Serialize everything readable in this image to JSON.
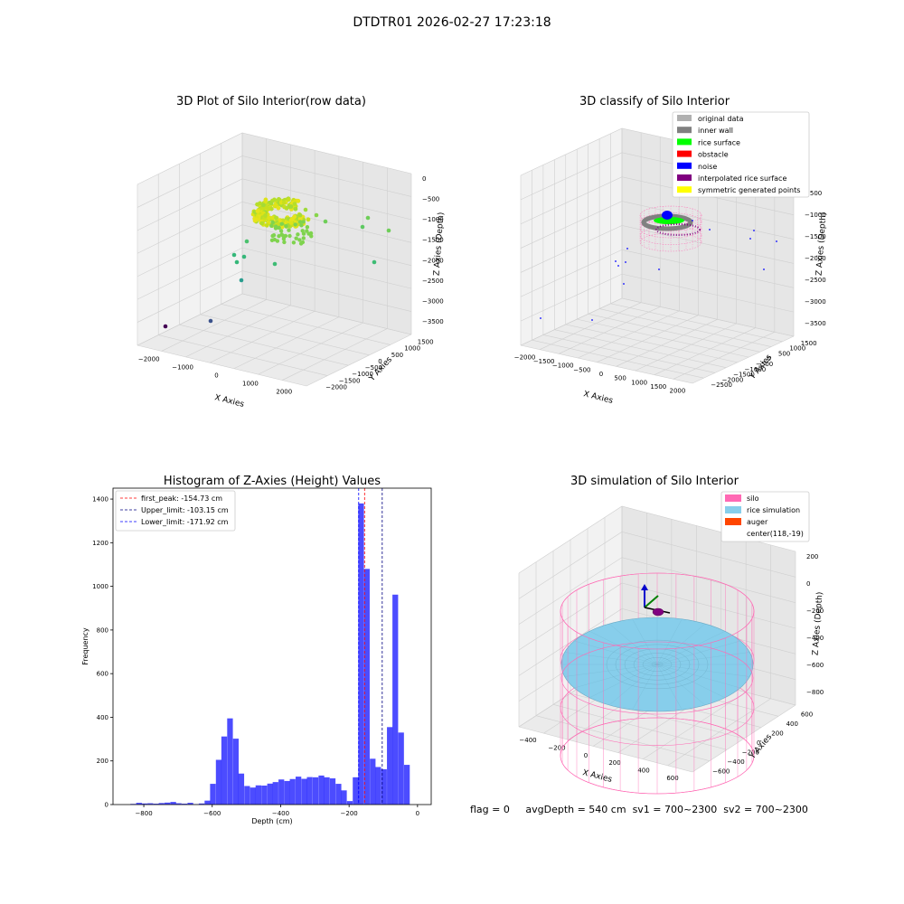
{
  "figure": {
    "suptitle": "DTDTR01 2026-02-27 17:23:18",
    "status": {
      "flag": "flag = 0",
      "avg_depth": "avgDepth = 540 cm",
      "sv1": "sv1 = 700~2300",
      "sv2": "sv2 = 700~2300"
    }
  },
  "chart_data": [
    {
      "type": "scatter",
      "subtype": "3d-scatter",
      "title": "3D Plot of Silo Interior(row data)",
      "xlabel": "X Axies",
      "ylabel": "Y Axies",
      "zlabel": "Z Axies (Depth)",
      "x_ticks": [
        "−2000",
        "−1000",
        "0",
        "1000",
        "2000"
      ],
      "y_ticks": [
        "1500",
        "1000",
        "500",
        "0",
        "−500",
        "−1000",
        "−1500",
        "−2000"
      ],
      "z_ticks": [
        "0",
        "−500",
        "−1000",
        "−1500",
        "−2000",
        "−2500",
        "−3000",
        "−3500"
      ],
      "xlim": [
        -2300,
        2300
      ],
      "ylim": [
        -2200,
        1700
      ],
      "zlim": [
        -3600,
        100
      ],
      "grid": true,
      "colormap": "viridis by depth",
      "cluster": {
        "x_range": [
          -200,
          200
        ],
        "y_range": [
          -150,
          250
        ],
        "z_range": [
          -250,
          -50
        ],
        "count": 2600
      },
      "outliers": [
        [
          -2050,
          -1900,
          -3300
        ],
        [
          -1550,
          -1500,
          -3050
        ],
        [
          -1200,
          -1100,
          -2050
        ],
        [
          -1050,
          -950,
          -1850
        ],
        [
          -900,
          -900,
          -1750
        ],
        [
          -650,
          -650,
          -1250
        ],
        [
          -550,
          -400,
          -2150
        ],
        [
          700,
          500,
          -1200
        ],
        [
          1200,
          850,
          -900
        ],
        [
          1500,
          1100,
          -1600
        ],
        [
          350,
          500,
          -1100
        ],
        [
          200,
          350,
          -700
        ],
        [
          -150,
          250,
          -1350
        ],
        [
          -350,
          -300,
          -900
        ],
        [
          900,
          1200,
          -1700
        ]
      ]
    },
    {
      "type": "scatter",
      "subtype": "3d-scatter-classified",
      "title": "3D classify of Silo Interior",
      "xlabel": "X Axies",
      "ylabel": "Y Axies",
      "zlabel": "Z Axies (Depth)",
      "x_ticks": [
        "−2000",
        "−1500",
        "−1000",
        "−500",
        "0",
        "500",
        "1000",
        "1500",
        "2000"
      ],
      "y_ticks": [
        "1500",
        "1000",
        "500",
        "0",
        "−500",
        "−1000",
        "−1500",
        "−2000",
        "−2500"
      ],
      "z_ticks": [
        "0",
        "−500",
        "−1000",
        "−1500",
        "−2000",
        "−2500",
        "−3000",
        "−3500"
      ],
      "xlim": [
        -2300,
        2200
      ],
      "ylim": [
        -2700,
        1800
      ],
      "zlim": [
        -3700,
        200
      ],
      "grid": true,
      "legend_position": "top-right",
      "legend": [
        {
          "label": "original data",
          "color": "#b0b0b0"
        },
        {
          "label": "inner wall",
          "color": "#808080"
        },
        {
          "label": "rice surface",
          "color": "#00ff00"
        },
        {
          "label": "obstacle",
          "color": "#ff0000"
        },
        {
          "label": "noise",
          "color": "#0000ff"
        },
        {
          "label": "interpolated rice surface",
          "color": "#800080"
        },
        {
          "label": "symmetric generated points",
          "color": "#ffff00"
        }
      ],
      "silo_cylinder": {
        "center": [
          118,
          -19
        ],
        "radius": 700,
        "z_top": 0,
        "z_bottom": -800
      },
      "noise_points": [
        [
          -2050,
          -2200,
          -3400
        ],
        [
          -1650,
          -1700,
          -3100
        ],
        [
          -1150,
          -1200,
          -2300
        ],
        [
          -1000,
          -1050,
          -2150
        ],
        [
          -950,
          -800,
          -2000
        ],
        [
          -700,
          -600,
          -1400
        ],
        [
          -500,
          -650,
          -2350
        ],
        [
          200,
          100,
          -1600
        ],
        [
          1600,
          1200,
          -1000
        ],
        [
          1850,
          1450,
          -1200
        ],
        [
          1350,
          850,
          -1900
        ],
        [
          950,
          1350,
          -1100
        ],
        [
          -450,
          400,
          -1800
        ],
        [
          600,
          -500,
          -1300
        ]
      ]
    },
    {
      "type": "bar",
      "subtype": "histogram",
      "title": "Histogram of Z-Axies (Height) Values",
      "xlabel": "Depth (cm)",
      "ylabel": "Frequency",
      "xlim": [
        -890,
        40
      ],
      "ylim": [
        0,
        1450
      ],
      "x_ticks": [
        -800,
        -600,
        -400,
        -200,
        0
      ],
      "y_ticks": [
        0,
        200,
        400,
        600,
        800,
        1000,
        1200,
        1400
      ],
      "bar_color": "#0000ff",
      "bar_alpha": 0.7,
      "bin_width": 16.6,
      "bins": [
        {
          "x": -831,
          "v": 3
        },
        {
          "x": -814,
          "v": 8
        },
        {
          "x": -798,
          "v": 5
        },
        {
          "x": -781,
          "v": 6
        },
        {
          "x": -764,
          "v": 4
        },
        {
          "x": -748,
          "v": 7
        },
        {
          "x": -731,
          "v": 9
        },
        {
          "x": -714,
          "v": 12
        },
        {
          "x": -698,
          "v": 6
        },
        {
          "x": -681,
          "v": 4
        },
        {
          "x": -664,
          "v": 8
        },
        {
          "x": -648,
          "v": 2
        },
        {
          "x": -631,
          "v": 5
        },
        {
          "x": -614,
          "v": 18
        },
        {
          "x": -598,
          "v": 95
        },
        {
          "x": -581,
          "v": 205
        },
        {
          "x": -565,
          "v": 312
        },
        {
          "x": -548,
          "v": 395
        },
        {
          "x": -531,
          "v": 302
        },
        {
          "x": -515,
          "v": 142
        },
        {
          "x": -498,
          "v": 85
        },
        {
          "x": -481,
          "v": 78
        },
        {
          "x": -465,
          "v": 88
        },
        {
          "x": -448,
          "v": 87
        },
        {
          "x": -431,
          "v": 96
        },
        {
          "x": -415,
          "v": 103
        },
        {
          "x": -398,
          "v": 115
        },
        {
          "x": -381,
          "v": 108
        },
        {
          "x": -365,
          "v": 117
        },
        {
          "x": -348,
          "v": 128
        },
        {
          "x": -331,
          "v": 118
        },
        {
          "x": -315,
          "v": 126
        },
        {
          "x": -298,
          "v": 125
        },
        {
          "x": -281,
          "v": 133
        },
        {
          "x": -265,
          "v": 125
        },
        {
          "x": -248,
          "v": 120
        },
        {
          "x": -231,
          "v": 95
        },
        {
          "x": -215,
          "v": 65
        },
        {
          "x": -198,
          "v": 16
        },
        {
          "x": -181,
          "v": 125
        },
        {
          "x": -165,
          "v": 1380
        },
        {
          "x": -148,
          "v": 1080
        },
        {
          "x": -131,
          "v": 210
        },
        {
          "x": -115,
          "v": 172
        },
        {
          "x": -98,
          "v": 162
        },
        {
          "x": -81,
          "v": 355
        },
        {
          "x": -65,
          "v": 962
        },
        {
          "x": -48,
          "v": 330
        },
        {
          "x": -31,
          "v": 182
        }
      ],
      "vlines": [
        {
          "label": "first_peak: -154.73 cm",
          "x": -154.73,
          "color": "#ff0000"
        },
        {
          "label": "Upper_limit: -103.15 cm",
          "x": -103.15,
          "color": "#000080"
        },
        {
          "label": "Lower_limit: -171.92 cm",
          "x": -171.92,
          "color": "#0000ff"
        }
      ],
      "legend_position": "top-left"
    },
    {
      "type": "scatter",
      "subtype": "3d-surface-simulation",
      "title": "3D simulation of Silo Interior",
      "xlabel": "X Axies",
      "ylabel": "Y Axies",
      "zlabel": "Z Axies (Depth)",
      "x_ticks": [
        "−400",
        "−200",
        "0",
        "200",
        "400",
        "600"
      ],
      "y_ticks": [
        "600",
        "400",
        "200",
        "0",
        "−200",
        "−400",
        "−600"
      ],
      "z_ticks": [
        "200",
        "0",
        "−200",
        "−400",
        "−600",
        "−800"
      ],
      "grid": true,
      "legend_position": "top-right",
      "legend": [
        {
          "label": "silo",
          "color": "#ff69b4",
          "kind": "patch"
        },
        {
          "label": "rice simulation",
          "color": "#87ceeb",
          "kind": "patch"
        },
        {
          "label": "auger",
          "color": "#ff4500",
          "kind": "patch"
        },
        {
          "label": "center(118,-19)",
          "color": "",
          "kind": "text"
        }
      ],
      "silo": {
        "center": [
          118,
          -19
        ],
        "radius": 700,
        "z_top": 280,
        "z_bottom": -900
      },
      "rice_surface_depth": -540
    }
  ]
}
